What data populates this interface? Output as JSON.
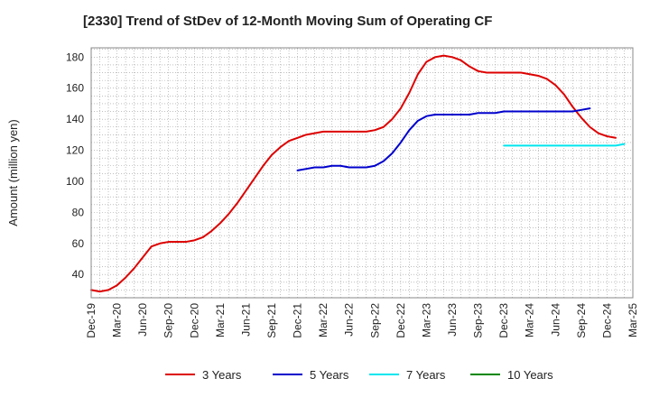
{
  "chart_data": {
    "type": "line",
    "title": "[2330]  Trend of StDev of 12-Month Moving Sum of Operating CF",
    "ylabel": "Amount (million yen)",
    "xlabel": "",
    "x_ticks": [
      "Dec-19",
      "Mar-20",
      "Jun-20",
      "Sep-20",
      "Dec-20",
      "Mar-21",
      "Jun-21",
      "Sep-21",
      "Dec-21",
      "Mar-22",
      "Jun-22",
      "Sep-22",
      "Dec-22",
      "Mar-23",
      "Jun-23",
      "Sep-23",
      "Dec-23",
      "Mar-24",
      "Jun-24",
      "Sep-24",
      "Dec-24",
      "Mar-25"
    ],
    "y_ticks": [
      40,
      60,
      80,
      100,
      120,
      140,
      160,
      180
    ],
    "ylim": [
      25,
      186
    ],
    "xlim": [
      "Dec-19",
      "Mar-25"
    ],
    "grid": true,
    "legend_position": "bottom",
    "series": [
      {
        "name": "3 Years",
        "color": "#dd0000",
        "start": "Dec-19",
        "values": [
          30,
          29,
          30,
          33,
          38,
          44,
          51,
          58,
          60,
          61,
          61,
          61,
          62,
          64,
          68,
          73,
          79,
          86,
          94,
          102,
          110,
          117,
          122,
          126,
          128,
          130,
          131,
          132,
          132,
          132,
          132,
          132,
          132,
          133,
          135,
          140,
          147,
          157,
          169,
          177,
          180,
          181,
          180,
          178,
          174,
          171,
          170,
          170,
          170,
          170,
          170,
          169,
          168,
          166,
          162,
          156,
          148,
          141,
          135,
          131,
          129,
          128
        ]
      },
      {
        "name": "5 Years",
        "color": "#0000cc",
        "start": "Dec-21",
        "values": [
          107,
          108,
          109,
          109,
          110,
          110,
          109,
          109,
          109,
          110,
          113,
          118,
          125,
          133,
          139,
          142,
          143,
          143,
          143,
          143,
          143,
          144,
          144,
          144,
          145,
          145,
          145,
          145,
          145,
          145,
          145,
          145,
          145,
          146,
          147
        ]
      },
      {
        "name": "7 Years",
        "color": "#00e5ee",
        "start": "Dec-23",
        "values": [
          123,
          123,
          123,
          123,
          123,
          123,
          123,
          123,
          123,
          123,
          123,
          123,
          123,
          123,
          124
        ]
      },
      {
        "name": "10 Years",
        "color": "#008800",
        "start": "Dec-24",
        "values": []
      }
    ]
  }
}
